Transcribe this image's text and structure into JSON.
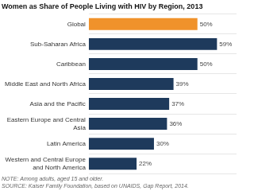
{
  "chart_data": {
    "type": "bar",
    "orientation": "horizontal",
    "title": "Women as Share of People Living with HIV by Region, 2013",
    "categories": [
      "Western and Central Europe\nand North America",
      "Latin America",
      "Eastern Europe and Central\nAsia",
      "Asia and the Pacific",
      "Middle East and North Africa",
      "Caribbean",
      "Sub-Saharan Africa",
      "Global"
    ],
    "values": [
      22,
      30,
      36,
      37,
      39,
      50,
      59,
      50
    ],
    "value_labels": [
      "22%",
      "30%",
      "36%",
      "37%",
      "39%",
      "50%",
      "59%",
      "50%"
    ],
    "colors": [
      "#1e3a5c",
      "#1e3a5c",
      "#1e3a5c",
      "#1e3a5c",
      "#1e3a5c",
      "#1e3a5c",
      "#1e3a5c",
      "#f0922b"
    ],
    "xlim": [
      0,
      68
    ],
    "data_labels": true,
    "tick_labels": "y",
    "grid": true,
    "annotations": [
      "NOTE: Among adults, aged 15 and older.",
      "SOURCE: Kaiser Family Foundation, based on UNAIDS, Gap Report, 2014."
    ]
  }
}
